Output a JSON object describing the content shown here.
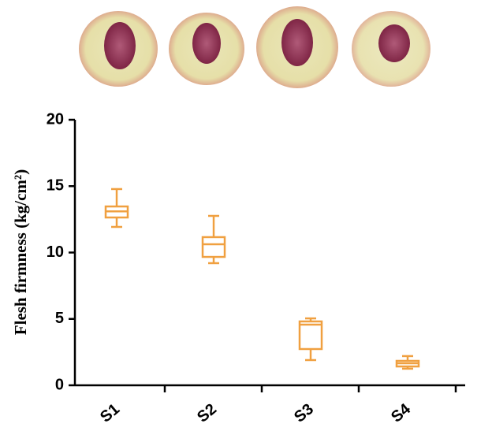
{
  "chart_data": {
    "type": "box",
    "y_label": "Flesh firmness (kg/cm²)",
    "categories": [
      "S1",
      "S2",
      "S3",
      "S4"
    ],
    "color": "#f0a040",
    "boxes": [
      {
        "min": 11.93,
        "q1": 12.64,
        "median": 13.1,
        "q3": 13.47,
        "max": 14.78
      },
      {
        "min": 9.2,
        "q1": 9.67,
        "median": 10.62,
        "q3": 11.16,
        "max": 12.76
      },
      {
        "min": 1.9,
        "q1": 2.73,
        "median": 4.57,
        "q3": 4.81,
        "max": 5.04
      },
      {
        "min": 1.25,
        "q1": 1.42,
        "median": 1.66,
        "q3": 1.84,
        "max": 2.2
      }
    ],
    "ylim": [
      0,
      20
    ],
    "yticks": [
      0,
      5,
      10,
      15,
      20
    ]
  }
}
